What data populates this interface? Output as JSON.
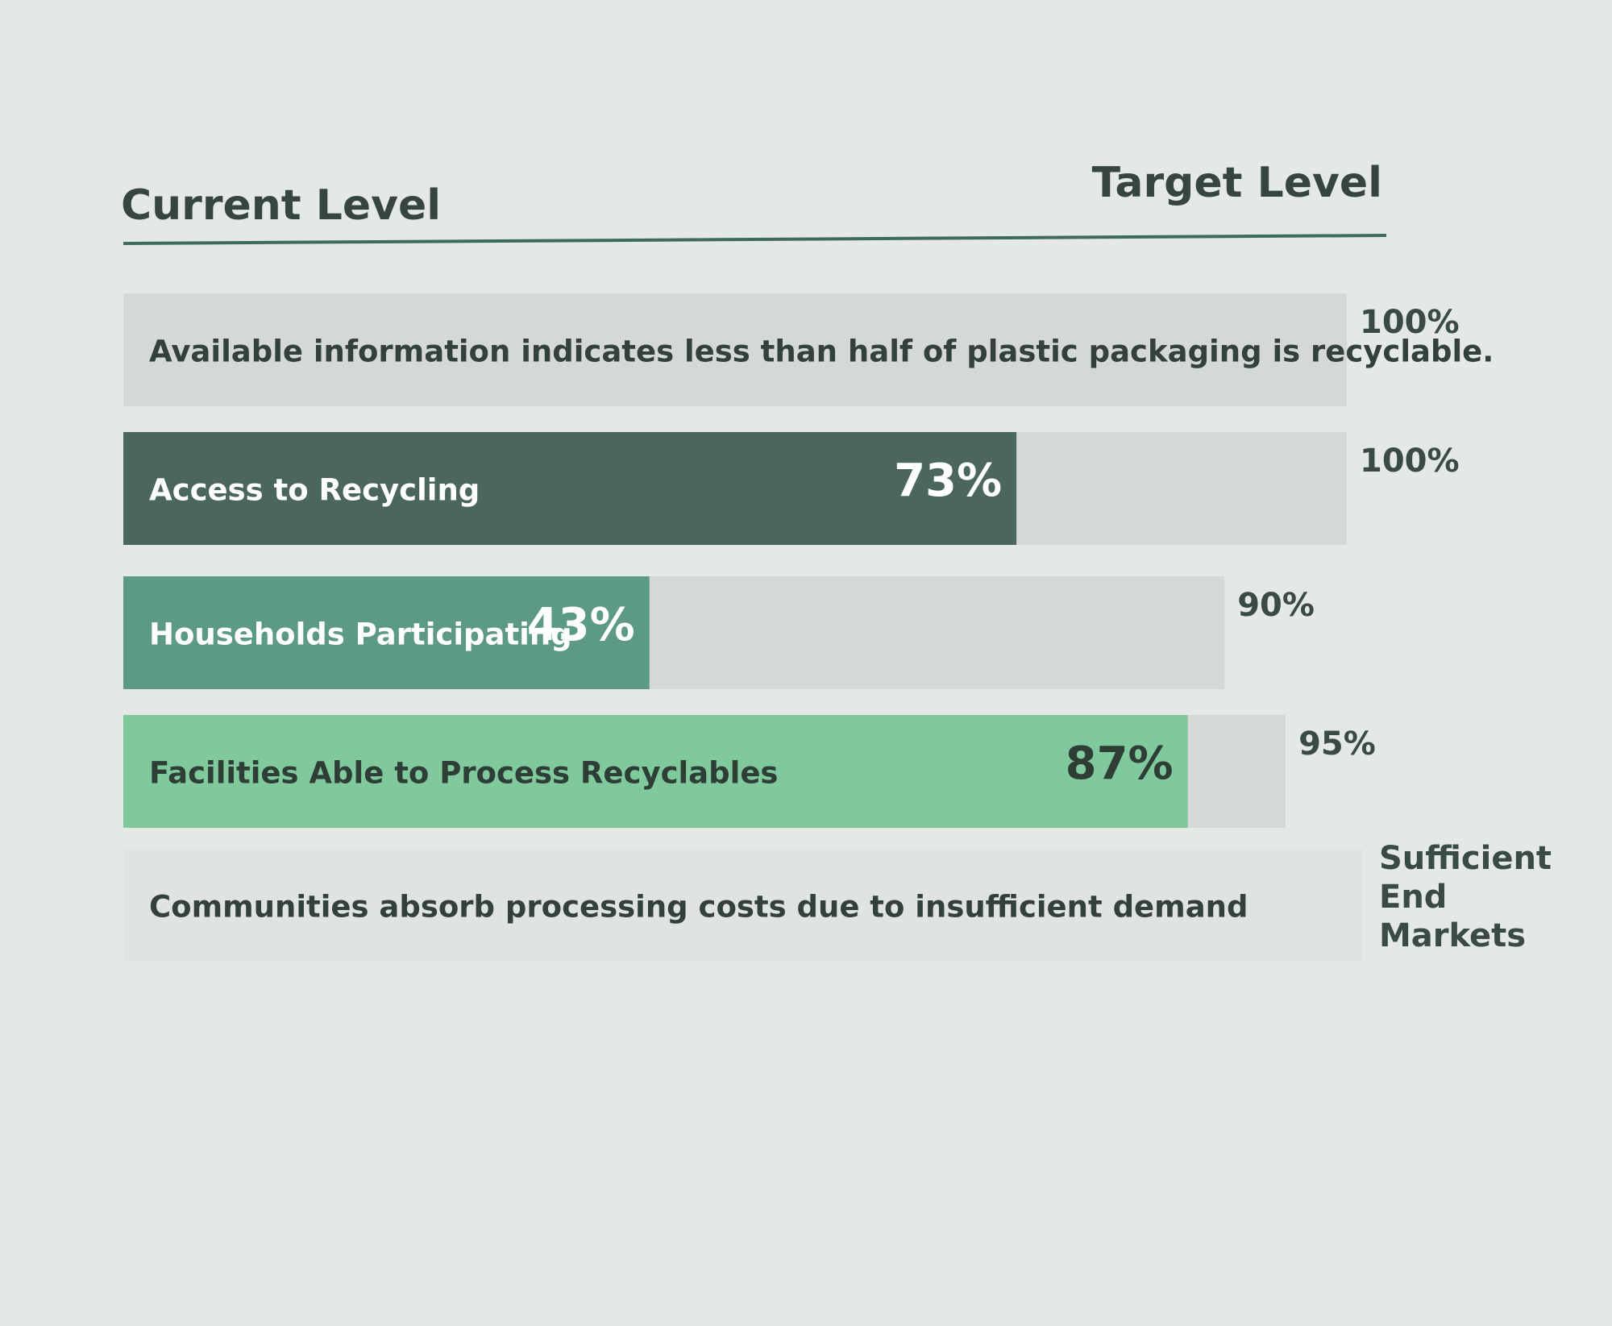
{
  "chart_data": {
    "type": "bar",
    "orientation": "horizontal",
    "xlim": [
      0,
      100
    ],
    "categories": [
      "Available information indicates less than half of plastic packaging is recyclable.",
      "Access to Recycling",
      "Households Participating",
      "Facilities Able to Process Recyclables",
      "Communities absorb processing costs due to insufficient demand"
    ],
    "series": [
      {
        "name": "Current Level",
        "colors": [
          null,
          "#4b675d",
          "#5c9a87",
          "#7fc99c",
          null
        ],
        "values": [
          null,
          73,
          43,
          87,
          null
        ],
        "value_labels": [
          null,
          "73%",
          "43%",
          "87%",
          null
        ]
      },
      {
        "name": "Target Level",
        "color": "#d5d9d6",
        "values": [
          100,
          100,
          90,
          95,
          null
        ],
        "value_labels": [
          "100%",
          "100%",
          "90%",
          "95%",
          "Sufficient End Markets"
        ]
      }
    ]
  }
}
